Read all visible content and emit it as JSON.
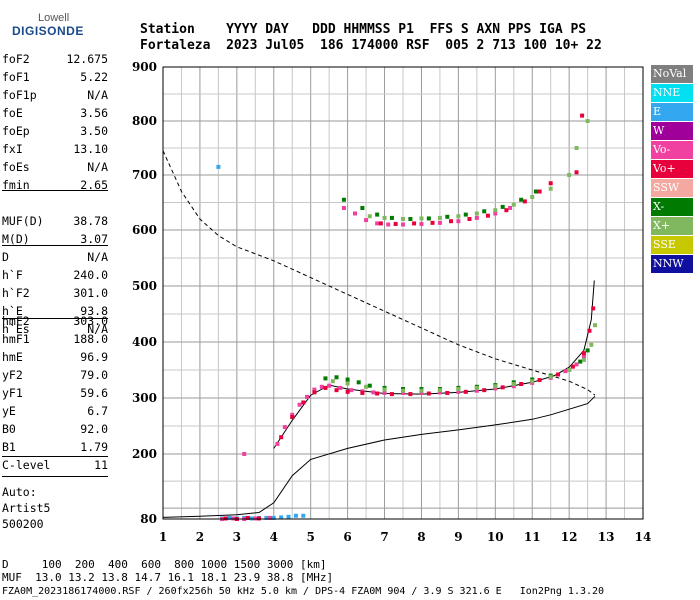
{
  "logo": {
    "line1": "Lowell",
    "line2": "DIGISONDE"
  },
  "header": {
    "line1": "Station    YYYY DAY   DDD HHMMSS P1  FFS S AXN PPS IGA PS",
    "line2": "Fortaleza  2023 Jul05  186 174000 RSF  005 2 713 100 10+ 22"
  },
  "parameters_group1": [
    {
      "name": "foF2",
      "value": "12.675"
    },
    {
      "name": "foF1",
      "value": "5.22"
    },
    {
      "name": "foF1p",
      "value": "N/A"
    },
    {
      "name": "foE",
      "value": "3.56"
    },
    {
      "name": "foEp",
      "value": "3.50"
    },
    {
      "name": "fxI",
      "value": "13.10"
    },
    {
      "name": "foEs",
      "value": "N/A"
    },
    {
      "name": "fmin",
      "value": "2.65"
    }
  ],
  "parameters_group2": [
    {
      "name": "MUF(D)",
      "value": "38.78"
    },
    {
      "name": "M(D)",
      "value": "3.07"
    },
    {
      "name": "D",
      "value": "N/A"
    }
  ],
  "parameters_group3": [
    {
      "name": "h`F",
      "value": "240.0"
    },
    {
      "name": "h`F2",
      "value": "301.0"
    },
    {
      "name": "h`E",
      "value": "93.8"
    },
    {
      "name": "h`Es",
      "value": "N/A"
    }
  ],
  "parameters_group4": [
    {
      "name": "hmF2",
      "value": "303.0"
    },
    {
      "name": "hmF1",
      "value": "188.0"
    },
    {
      "name": "hmE",
      "value": "96.9"
    },
    {
      "name": "yF2",
      "value": "79.0"
    },
    {
      "name": "yF1",
      "value": "59.6"
    },
    {
      "name": "yE",
      "value": "6.7"
    },
    {
      "name": "B0",
      "value": "92.0"
    },
    {
      "name": "B1",
      "value": "1.79"
    }
  ],
  "c_level": {
    "name": "C-level",
    "value": "11"
  },
  "autoscaling": {
    "line1": "Auto:",
    "line2": "Artist5",
    "line3": "500200"
  },
  "legend": [
    {
      "label": "NoVal",
      "color": "#7f7f7f"
    },
    {
      "label": "NNE",
      "color": "#00e0f0"
    },
    {
      "label": "E",
      "color": "#33a8f0"
    },
    {
      "label": "W",
      "color": "#a0009a"
    },
    {
      "label": "Vo-",
      "color": "#f040a0"
    },
    {
      "label": "Vo+",
      "color": "#e8003c"
    },
    {
      "label": "SSW",
      "color": "#f4a8a0"
    },
    {
      "label": "X-",
      "color": "#007a00"
    },
    {
      "label": "X+",
      "color": "#80b860"
    },
    {
      "label": "SSE",
      "color": "#c8c800"
    },
    {
      "label": "NNW",
      "color": "#1010a0"
    }
  ],
  "bottom": {
    "line1": "D     100  200  400  600  800 1000 1500 3000 [km]",
    "line2": "MUF  13.0 13.2 13.8 14.7 16.1 18.1 23.9 38.8 [MHz]",
    "line3": "FZA0M_2023186174000.RSF / 260fx256h 50 kHz 5.0 km / DPS-4 FZA0M 904 / 3.9 S 321.6 E   Ion2Png 1.3.20"
  },
  "chart_data": {
    "type": "scatter",
    "title": "",
    "xlabel": "",
    "ylabel": "",
    "xlim": [
      1,
      14
    ],
    "ylim": [
      80,
      900
    ],
    "x_ticks": [
      1,
      2,
      3,
      4,
      5,
      6,
      7,
      8,
      9,
      10,
      11,
      12,
      13,
      14
    ],
    "y_ticks": [
      80,
      200,
      300,
      400,
      500,
      600,
      700,
      800,
      900
    ],
    "y_scale": "non-linear (virtual height)",
    "grid": true,
    "legend_position": "right",
    "series": [
      {
        "name": "E",
        "color": "#33a8f0",
        "points": [
          [
            2.6,
            81
          ],
          [
            2.8,
            82
          ],
          [
            3.0,
            81
          ],
          [
            3.2,
            82
          ],
          [
            3.4,
            81
          ],
          [
            3.6,
            82
          ],
          [
            3.8,
            82
          ],
          [
            4.0,
            82
          ],
          [
            4.2,
            83
          ],
          [
            4.4,
            84
          ],
          [
            4.6,
            86
          ],
          [
            4.8,
            86
          ],
          [
            2.5,
            715
          ]
        ]
      },
      {
        "name": "Vo-",
        "color": "#f040a0",
        "points": [
          [
            2.6,
            80
          ],
          [
            2.9,
            81
          ],
          [
            3.2,
            80
          ],
          [
            3.5,
            81
          ],
          [
            3.9,
            82
          ],
          [
            4.1,
            218
          ],
          [
            4.3,
            248
          ],
          [
            4.5,
            270
          ],
          [
            4.7,
            288
          ],
          [
            4.9,
            302
          ],
          [
            5.1,
            315
          ],
          [
            5.3,
            320
          ],
          [
            5.5,
            322
          ],
          [
            5.8,
            318
          ],
          [
            6.1,
            314
          ],
          [
            6.4,
            312
          ],
          [
            6.7,
            310
          ],
          [
            7.0,
            309
          ],
          [
            7.5,
            309
          ],
          [
            8.0,
            309
          ],
          [
            8.5,
            310
          ],
          [
            9.0,
            311
          ],
          [
            9.5,
            313
          ],
          [
            10.0,
            317
          ],
          [
            10.5,
            321
          ],
          [
            11.0,
            327
          ],
          [
            11.5,
            336
          ],
          [
            11.9,
            348
          ],
          [
            12.2,
            360
          ],
          [
            12.4,
            375
          ],
          [
            3.2,
            200
          ],
          [
            5.9,
            640
          ],
          [
            6.2,
            630
          ],
          [
            6.5,
            618
          ],
          [
            6.8,
            612
          ],
          [
            7.1,
            610
          ],
          [
            7.5,
            610
          ],
          [
            8.0,
            611
          ],
          [
            8.5,
            613
          ],
          [
            9.0,
            616
          ],
          [
            9.5,
            622
          ],
          [
            10.0,
            630
          ],
          [
            10.4,
            640
          ]
        ]
      },
      {
        "name": "Vo+",
        "color": "#e8003c",
        "points": [
          [
            2.7,
            81
          ],
          [
            3.0,
            80
          ],
          [
            3.3,
            82
          ],
          [
            3.6,
            81
          ],
          [
            4.2,
            230
          ],
          [
            4.5,
            266
          ],
          [
            4.8,
            292
          ],
          [
            5.1,
            310
          ],
          [
            5.4,
            318
          ],
          [
            5.7,
            314
          ],
          [
            6.0,
            311
          ],
          [
            6.4,
            309
          ],
          [
            6.8,
            308
          ],
          [
            7.2,
            307
          ],
          [
            7.7,
            307
          ],
          [
            8.2,
            308
          ],
          [
            8.7,
            309
          ],
          [
            9.2,
            311
          ],
          [
            9.7,
            314
          ],
          [
            10.2,
            319
          ],
          [
            10.7,
            325
          ],
          [
            11.2,
            332
          ],
          [
            11.7,
            342
          ],
          [
            12.1,
            356
          ],
          [
            12.4,
            380
          ],
          [
            12.55,
            420
          ],
          [
            12.65,
            460
          ],
          [
            6.9,
            612
          ],
          [
            7.3,
            611
          ],
          [
            7.8,
            612
          ],
          [
            8.3,
            613
          ],
          [
            8.8,
            616
          ],
          [
            9.3,
            620
          ],
          [
            9.8,
            626
          ],
          [
            10.3,
            636
          ],
          [
            10.8,
            652
          ],
          [
            11.2,
            670
          ],
          [
            11.5,
            685
          ],
          [
            12.2,
            705
          ],
          [
            12.35,
            810
          ]
        ]
      },
      {
        "name": "X-",
        "color": "#007a00",
        "points": [
          [
            5.4,
            335
          ],
          [
            5.7,
            337
          ],
          [
            6.0,
            333
          ],
          [
            6.3,
            328
          ],
          [
            6.6,
            322
          ],
          [
            7.0,
            318
          ],
          [
            7.5,
            316
          ],
          [
            8.0,
            316
          ],
          [
            8.5,
            316
          ],
          [
            9.0,
            318
          ],
          [
            9.5,
            320
          ],
          [
            10.0,
            323
          ],
          [
            10.5,
            328
          ],
          [
            11.0,
            333
          ],
          [
            11.5,
            340
          ],
          [
            12.0,
            350
          ],
          [
            12.3,
            365
          ],
          [
            12.5,
            385
          ],
          [
            5.9,
            655
          ],
          [
            6.4,
            640
          ],
          [
            6.8,
            628
          ],
          [
            7.2,
            622
          ],
          [
            7.7,
            620
          ],
          [
            8.2,
            621
          ],
          [
            8.7,
            624
          ],
          [
            9.2,
            628
          ],
          [
            9.7,
            634
          ],
          [
            10.2,
            642
          ],
          [
            10.7,
            655
          ],
          [
            11.1,
            670
          ]
        ]
      },
      {
        "name": "X+",
        "color": "#80b860",
        "points": [
          [
            5.6,
            330
          ],
          [
            6.0,
            326
          ],
          [
            6.5,
            320
          ],
          [
            7.0,
            315
          ],
          [
            7.5,
            313
          ],
          [
            8.0,
            313
          ],
          [
            8.5,
            314
          ],
          [
            9.0,
            316
          ],
          [
            9.5,
            318
          ],
          [
            10.0,
            321
          ],
          [
            10.5,
            325
          ],
          [
            11.0,
            330
          ],
          [
            11.5,
            338
          ],
          [
            12.0,
            350
          ],
          [
            12.4,
            368
          ],
          [
            12.6,
            395
          ],
          [
            12.7,
            430
          ],
          [
            6.6,
            625
          ],
          [
            7.0,
            622
          ],
          [
            7.5,
            620
          ],
          [
            8.0,
            621
          ],
          [
            8.5,
            622
          ],
          [
            9.0,
            625
          ],
          [
            9.5,
            630
          ],
          [
            10.0,
            636
          ],
          [
            10.5,
            646
          ],
          [
            11.0,
            660
          ],
          [
            11.5,
            675
          ],
          [
            12.0,
            700
          ],
          [
            12.2,
            750
          ],
          [
            12.5,
            800
          ]
        ]
      }
    ],
    "lines": [
      {
        "name": "profile",
        "style": "solid",
        "points": [
          [
            1,
            83
          ],
          [
            2,
            85
          ],
          [
            3,
            88
          ],
          [
            3.6,
            92
          ],
          [
            4,
            110
          ],
          [
            4.5,
            160
          ],
          [
            5,
            190
          ],
          [
            6,
            210
          ],
          [
            7,
            225
          ],
          [
            8,
            235
          ],
          [
            9,
            243
          ],
          [
            10,
            252
          ],
          [
            11,
            262
          ],
          [
            11.5,
            270
          ],
          [
            12,
            280
          ],
          [
            12.5,
            290
          ],
          [
            12.7,
            303
          ]
        ]
      },
      {
        "name": "trace",
        "style": "solid",
        "points": [
          [
            4.0,
            210
          ],
          [
            4.5,
            260
          ],
          [
            5.0,
            305
          ],
          [
            5.5,
            323
          ],
          [
            6.0,
            316
          ],
          [
            7.0,
            308
          ],
          [
            8.0,
            307
          ],
          [
            9.0,
            310
          ],
          [
            10.0,
            316
          ],
          [
            11.0,
            328
          ],
          [
            11.6,
            340
          ],
          [
            12.0,
            355
          ],
          [
            12.4,
            385
          ],
          [
            12.6,
            440
          ],
          [
            12.68,
            510
          ]
        ]
      },
      {
        "name": "muf",
        "style": "dashed",
        "points": [
          [
            1,
            745
          ],
          [
            1.5,
            670
          ],
          [
            2,
            620
          ],
          [
            2.5,
            590
          ],
          [
            3,
            570
          ],
          [
            4,
            545
          ],
          [
            5,
            515
          ],
          [
            6,
            485
          ],
          [
            7,
            455
          ],
          [
            8,
            425
          ],
          [
            9,
            395
          ],
          [
            10,
            370
          ],
          [
            11,
            350
          ],
          [
            12,
            330
          ],
          [
            12.5,
            315
          ],
          [
            12.7,
            305
          ]
        ]
      }
    ]
  }
}
